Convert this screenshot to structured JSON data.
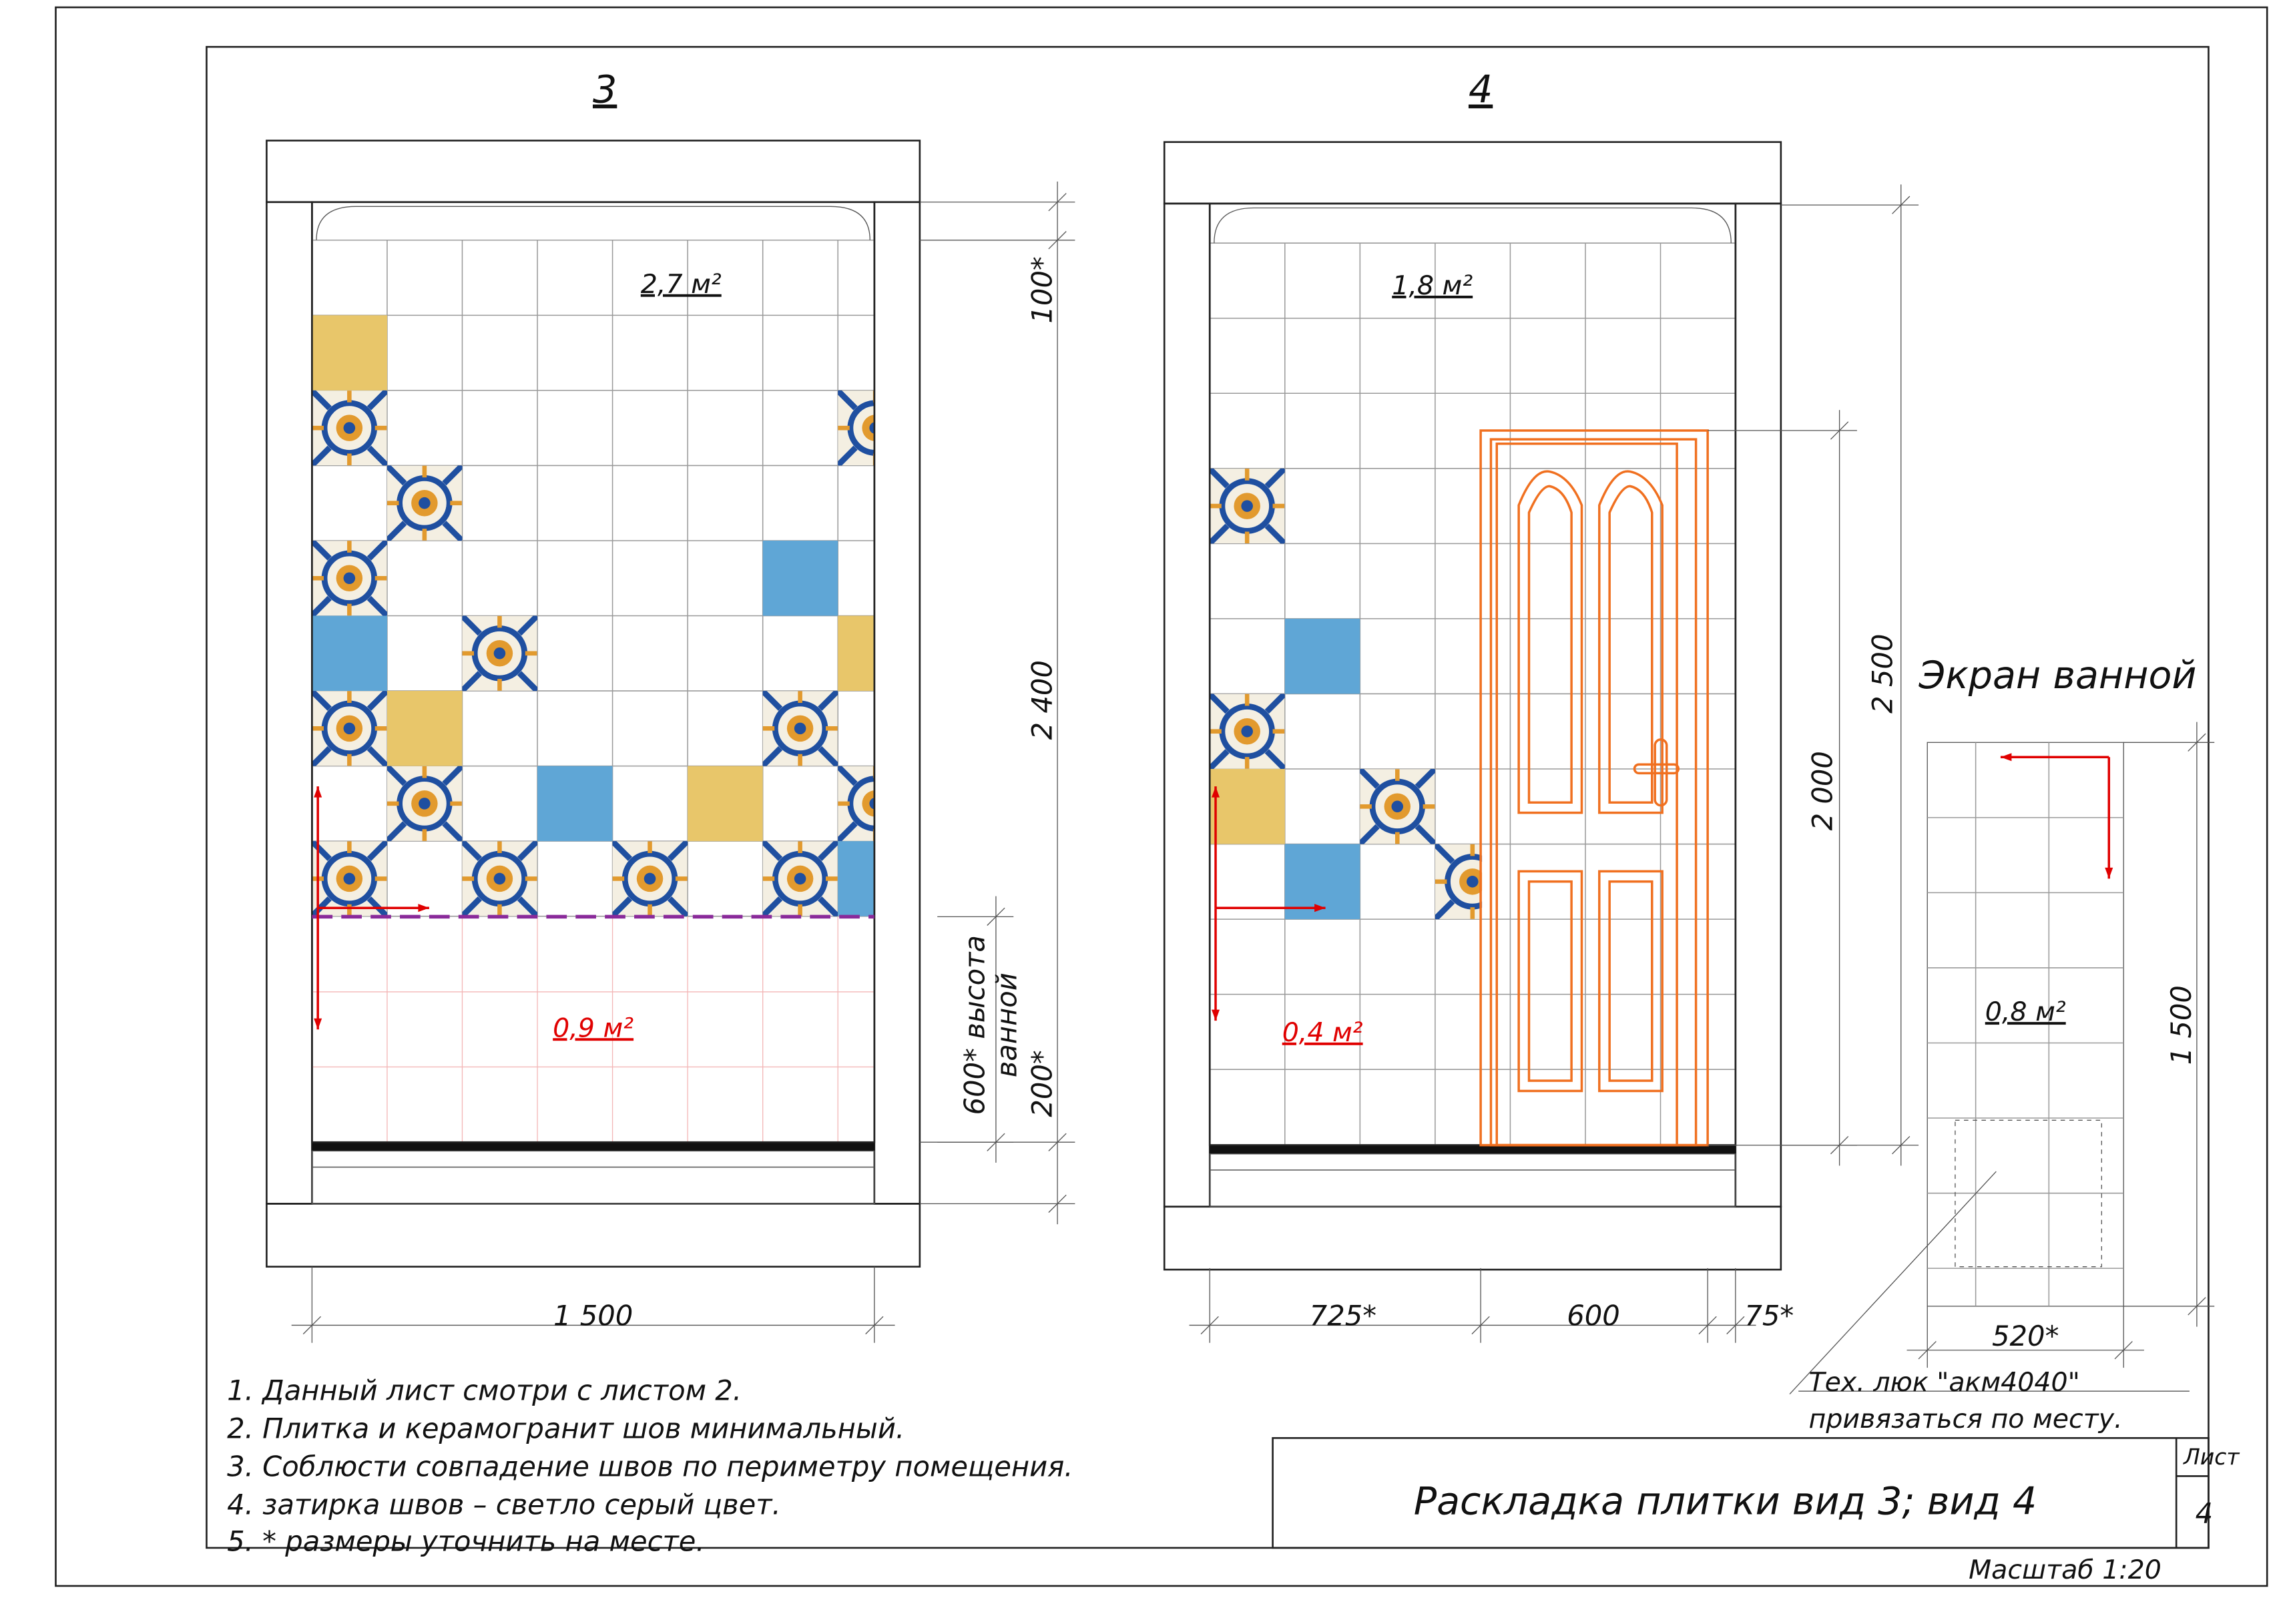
{
  "views": [
    {
      "title": "3",
      "area_top": "2,7 м²",
      "area_bottom": "0,9 м²"
    },
    {
      "title": "4",
      "area_top": "1,8 м²",
      "area_bottom": "0,4 м²"
    }
  ],
  "dimensions": {
    "view3": {
      "top": "100*",
      "middle": "2 400",
      "bath_height_1": "600* высота",
      "bath_height_2": "ванной",
      "bottom": "200*",
      "width": "1 500"
    },
    "view4": {
      "height": "2 500",
      "door_height": "2 000",
      "left": "725*",
      "door_width": "600",
      "right": "75*"
    },
    "screen": {
      "height": "1 500",
      "width": "520*"
    }
  },
  "screen": {
    "title": "Экран ванной",
    "area": "0,8 м²",
    "note_1": "Тех. люк \"акм4040\"",
    "note_2": "привязаться по месту."
  },
  "notes": [
    "1. Данный лист смотри с листом 2.",
    "2. Плитка и керамогранит шов минимальный.",
    "3. Соблюсти совпадение швов по периметру помещения.",
    "4. затирка швов – светло серый цвет.",
    "5. * размеры уточнить на месте."
  ],
  "title_block": {
    "title": "Раскладка плитки вид 3;  вид 4",
    "sheet_label": "Лист",
    "sheet_number": "4",
    "scale": "Масштаб 1:20"
  }
}
